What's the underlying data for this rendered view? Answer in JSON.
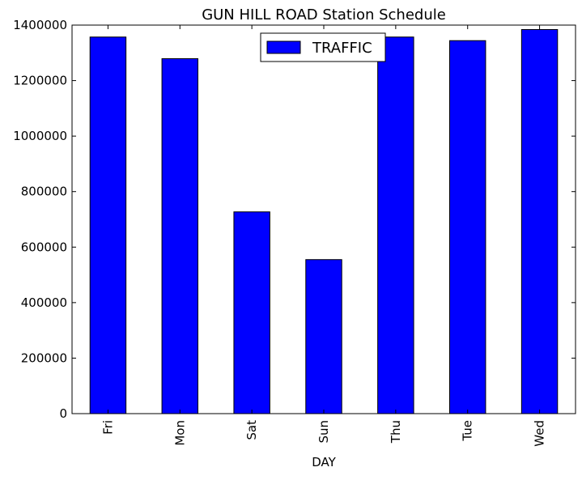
{
  "chart_data": {
    "type": "bar",
    "title": "GUN HILL ROAD Station Schedule",
    "xlabel": "DAY",
    "ylabel": "",
    "categories": [
      "Fri",
      "Mon",
      "Sat",
      "Sun",
      "Thu",
      "Tue",
      "Wed"
    ],
    "series": [
      {
        "name": "TRAFFIC",
        "color": "#0000ff",
        "values": [
          1357000,
          1279000,
          727000,
          555000,
          1357000,
          1344000,
          1384000
        ]
      }
    ],
    "ylim": [
      0,
      1400000
    ],
    "yticks": [
      0,
      200000,
      400000,
      600000,
      800000,
      1000000,
      1200000,
      1400000
    ],
    "grid": false,
    "legend_position": "top-center"
  }
}
